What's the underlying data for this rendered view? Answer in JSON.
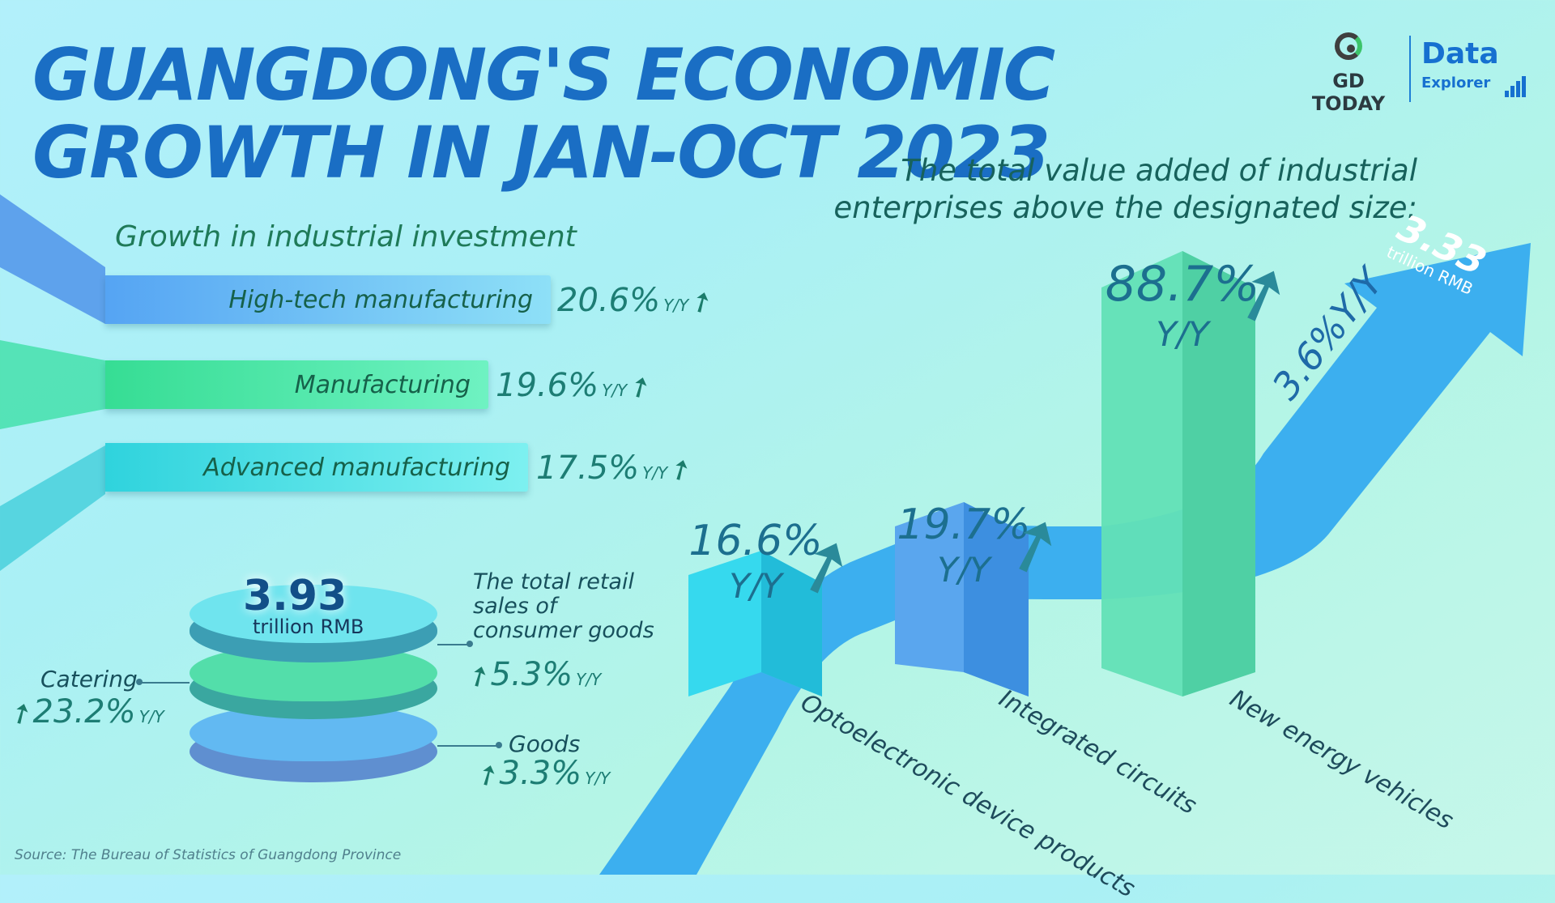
{
  "title": "GUANGDONG'S ECONOMIC GROWTH IN JAN-OCT 2023",
  "logo": {
    "brand": "GD TODAY",
    "product_top": "Data",
    "product_bottom": "Explorer"
  },
  "colors": {
    "title": "#1a6ec4",
    "blue_bar": "#7dd3f2",
    "green_bar": "#5cecb0",
    "teal_bar": "#59e2eb",
    "arrow": "#2fa7ef"
  },
  "chart_data": [
    {
      "type": "bar",
      "title": "Growth in industrial investment",
      "categories": [
        "High-tech manufacturing",
        "Manufacturing",
        "Advanced manufacturing"
      ],
      "values": [
        20.6,
        19.6,
        17.5
      ],
      "value_labels": [
        "20.6%",
        "19.6%",
        "17.5%"
      ],
      "unit_label": "Y/Y"
    },
    {
      "type": "bar",
      "title": "The total value added of industrial enterprises above the designated size:",
      "total": {
        "value": "3.33",
        "unit": "trillion RMB",
        "growth": "3.6%Y/Y"
      },
      "categories": [
        "Optoelectronic device products",
        "Integrated circuits",
        "New energy vehicles"
      ],
      "values": [
        16.6,
        19.7,
        88.7
      ],
      "value_labels": [
        "16.6%",
        "19.7%",
        "88.7%"
      ],
      "unit_label": "Y/Y"
    },
    {
      "type": "table",
      "title": "The total retail sales of consumer goods",
      "total": {
        "value": "3.93",
        "unit": "trillion RMB",
        "growth": "5.3%",
        "growth_unit": "Y/Y"
      },
      "rows": [
        {
          "name": "Catering",
          "growth": "23.2%",
          "unit": "Y/Y"
        },
        {
          "name": "Goods",
          "growth": "3.3%",
          "unit": "Y/Y"
        }
      ]
    }
  ],
  "source": "Source: The Bureau of Statistics of Guangdong Province"
}
